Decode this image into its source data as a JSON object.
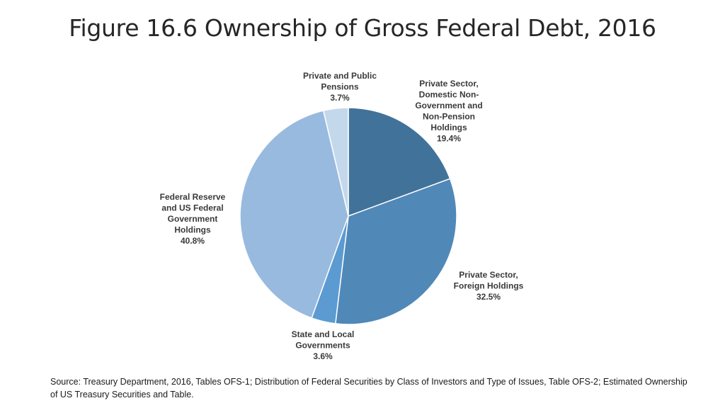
{
  "slide": {
    "title": "Figure 16.6 Ownership of Gross Federal Debt, 2016",
    "source": "Source: Treasury Department, 2016, Tables OFS-1; Distribution of Federal Securities by Class of Investors and Type of Issues, Table OFS-2; Estimated Ownership of US Treasury Securities and Table."
  },
  "chart_data": {
    "type": "pie",
    "title": "Figure 16.6 Ownership of Gross Federal Debt, 2016",
    "start_angle_deg": 0,
    "direction": "clockwise",
    "slices": [
      {
        "label": "Private Sector, Domestic Non-Government and Non-Pension Holdings",
        "label_lines": [
          "Private Sector,",
          "Domestic Non-",
          "Government and",
          "Non-Pension",
          "Holdings",
          "19.4%"
        ],
        "value": 19.4,
        "color": "#41729a"
      },
      {
        "label": "Private Sector, Foreign Holdings",
        "label_lines": [
          "Private Sector,",
          "Foreign Holdings",
          "32.5%"
        ],
        "value": 32.5,
        "color": "#5088b8"
      },
      {
        "label": "State and Local Governments",
        "label_lines": [
          "State and Local",
          "Governments",
          "3.6%"
        ],
        "value": 3.6,
        "color": "#5b9bd1"
      },
      {
        "label": "Federal Reserve and US Federal Government Holdings",
        "label_lines": [
          "Federal Reserve",
          "and US Federal",
          "Government",
          "Holdings",
          "40.8%"
        ],
        "value": 40.8,
        "color": "#98bade"
      },
      {
        "label": "Private and Public Pensions",
        "label_lines": [
          "Private and Public",
          "Pensions",
          "3.7%"
        ],
        "value": 3.7,
        "color": "#c4d8ec"
      }
    ]
  }
}
